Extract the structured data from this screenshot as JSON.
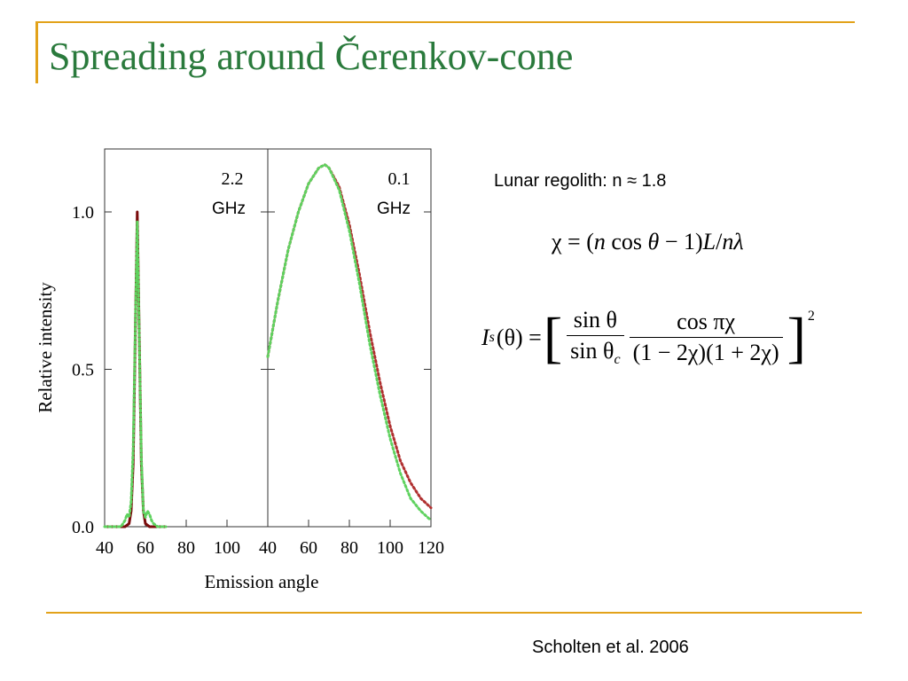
{
  "slide": {
    "title": "Spreading around Čerenkov-cone",
    "regolith_text": "Lunar regolith:  n ≈ 1.8",
    "citation": "Scholten et al. 2006",
    "eq1": {
      "lhs": "χ = (",
      "n": "n",
      "cos": " cos ",
      "theta": "θ",
      "rest": " − 1)",
      "L": "L",
      "slash": "/",
      "n2": "n",
      "lambda": "λ"
    },
    "eq2": {
      "I": "I",
      "s": "s",
      "arg": "(θ) = ",
      "num1": "sin θ",
      "den1": "sin θ",
      "den1_sub": "c",
      "num2": "cos πχ",
      "den2": "(1 − 2χ)(1 + 2χ)",
      "exp": "2"
    }
  },
  "chart_data": {
    "type": "line",
    "ylabel": "Relative intensity",
    "xlabel": "Emission angle",
    "ylim": [
      0,
      1.2
    ],
    "yticks": [
      {
        "value": 0.0,
        "label": "0.0"
      },
      {
        "value": 0.5,
        "label": "0.5"
      },
      {
        "value": 1.0,
        "label": "1.0"
      }
    ],
    "panels": [
      {
        "id": "left",
        "freq": "2.2",
        "unit": "GHz",
        "xlim": [
          40,
          120
        ],
        "xticks": [
          "40",
          "60",
          "80",
          "100"
        ],
        "series": [
          {
            "color": "#7a0c0c",
            "style": "solid",
            "x": [
              40,
              50,
              52,
              53,
              54,
              55,
              56,
              57,
              58,
              59,
              60,
              62,
              70
            ],
            "y": [
              0.0,
              0.0,
              0.01,
              0.05,
              0.2,
              0.6,
              1.0,
              0.6,
              0.2,
              0.05,
              0.01,
              0.0,
              0.0
            ]
          },
          {
            "color": "#5fd25f",
            "style": "dotted",
            "x": [
              40,
              48,
              50,
              51,
              52,
              53,
              54,
              55,
              56,
              57,
              58,
              59,
              60,
              61,
              62,
              63,
              64,
              66,
              70
            ],
            "y": [
              0.0,
              0.0,
              0.02,
              0.04,
              0.03,
              0.08,
              0.25,
              0.62,
              0.97,
              0.6,
              0.22,
              0.05,
              0.03,
              0.05,
              0.04,
              0.02,
              0.01,
              0.0,
              0.0
            ]
          }
        ]
      },
      {
        "id": "right",
        "freq": "0.1",
        "unit": "GHz",
        "xlim": [
          40,
          120
        ],
        "xticks": [
          "40",
          "60",
          "80",
          "100",
          "120"
        ],
        "series": [
          {
            "color": "#b03030",
            "style": "dotted",
            "x": [
              40,
              45,
              50,
              55,
              60,
              65,
              68,
              70,
              75,
              80,
              85,
              90,
              95,
              100,
              105,
              110,
              115,
              120
            ],
            "y": [
              0.54,
              0.72,
              0.88,
              1.0,
              1.09,
              1.14,
              1.15,
              1.14,
              1.08,
              0.96,
              0.8,
              0.62,
              0.46,
              0.32,
              0.21,
              0.14,
              0.09,
              0.06
            ]
          },
          {
            "color": "#5fd25f",
            "style": "dotted",
            "x": [
              40,
              45,
              50,
              55,
              60,
              65,
              68,
              70,
              75,
              80,
              85,
              90,
              95,
              100,
              105,
              110,
              115,
              120
            ],
            "y": [
              0.54,
              0.72,
              0.88,
              1.0,
              1.09,
              1.14,
              1.15,
              1.14,
              1.07,
              0.94,
              0.77,
              0.58,
              0.42,
              0.28,
              0.17,
              0.09,
              0.05,
              0.02
            ]
          }
        ]
      }
    ]
  }
}
